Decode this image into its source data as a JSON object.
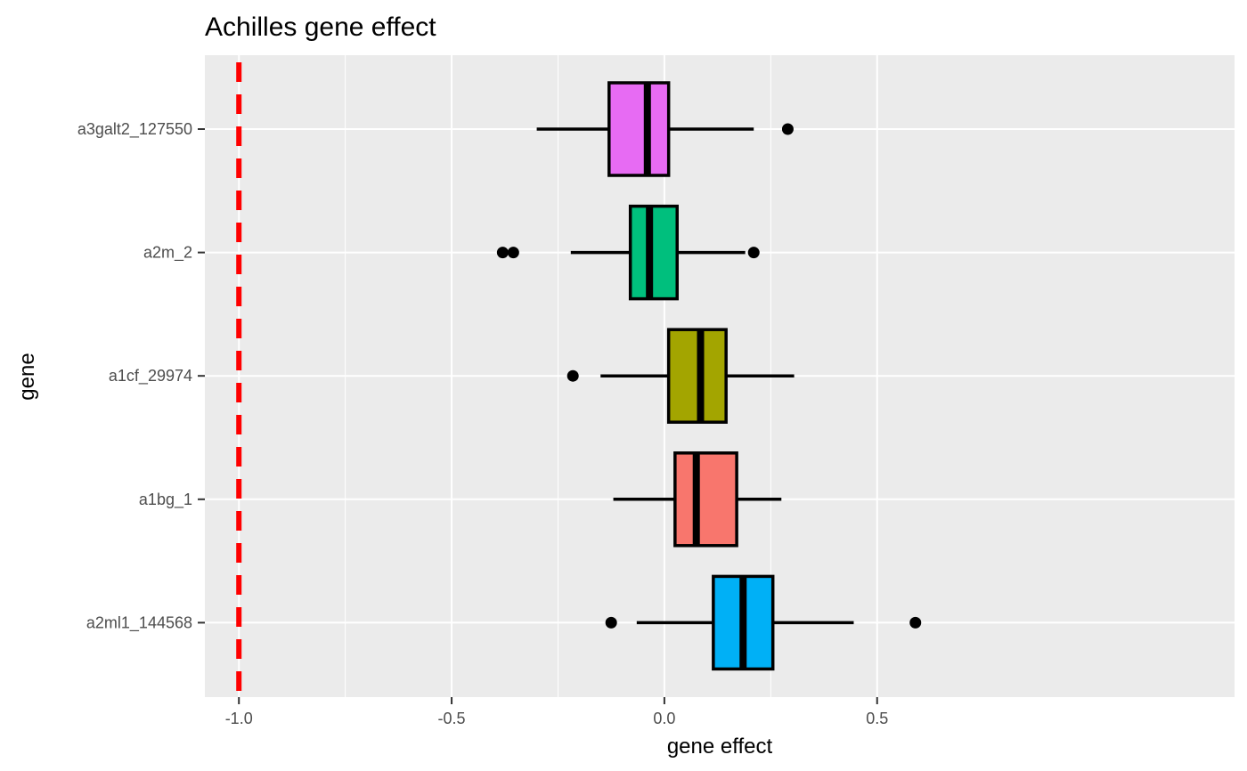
{
  "chart_data": {
    "type": "boxplot",
    "orientation": "horizontal",
    "title": "Achilles gene effect",
    "xlabel": "gene effect",
    "ylabel": "gene",
    "xlim": [
      -1.08,
      1.34
    ],
    "xticks": [
      -1.0,
      -0.5,
      0.0,
      0.5
    ],
    "xtick_labels": [
      "-1.0",
      "-0.5",
      "0.0",
      "0.5"
    ],
    "grid": true,
    "legend": "none",
    "panel_background": "#ebebeb",
    "reference_line": {
      "x": -1.0,
      "color": "#ff0000",
      "style": "dashed"
    },
    "categories": [
      "a3galt2_127550",
      "a2m_2",
      "a1cf_29974",
      "a1bg_1",
      "a2ml1_144568"
    ],
    "boxes": [
      {
        "category": "a3galt2_127550",
        "whisker_low": -0.3,
        "q1": -0.13,
        "median": -0.04,
        "q3": 0.01,
        "whisker_high": 0.21,
        "outliers": [
          0.29
        ],
        "color": "#e76bf3"
      },
      {
        "category": "a2m_2",
        "whisker_low": -0.22,
        "q1": -0.08,
        "median": -0.035,
        "q3": 0.03,
        "whisker_high": 0.19,
        "outliers": [
          -0.38,
          -0.355,
          0.21
        ],
        "color": "#00bf7d"
      },
      {
        "category": "a1cf_29974",
        "whisker_low": -0.15,
        "q1": 0.01,
        "median": 0.085,
        "q3": 0.145,
        "whisker_high": 0.305,
        "outliers": [
          -0.215
        ],
        "color": "#a3a500"
      },
      {
        "category": "a1bg_1",
        "whisker_low": -0.12,
        "q1": 0.025,
        "median": 0.075,
        "q3": 0.17,
        "whisker_high": 0.275,
        "outliers": [],
        "color": "#f8766d"
      },
      {
        "category": "a2ml1_144568",
        "whisker_low": -0.065,
        "q1": 0.115,
        "median": 0.185,
        "q3": 0.255,
        "whisker_high": 0.445,
        "outliers": [
          -0.125,
          0.59
        ],
        "color": "#00b0f6"
      }
    ]
  }
}
